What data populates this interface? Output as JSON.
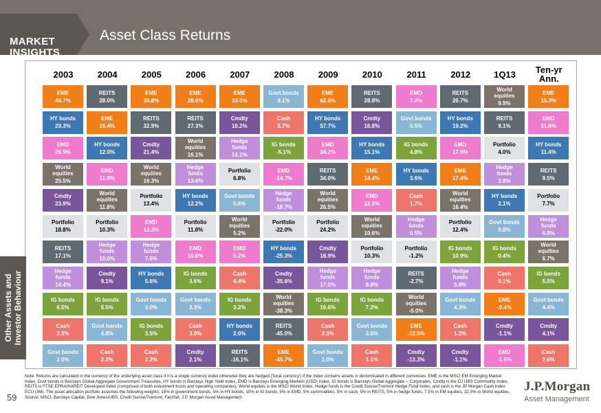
{
  "header": {
    "brand_line1": "MARKET",
    "brand_line2": "INSIGHTS",
    "title": "Asset Class Returns"
  },
  "sidebar": {
    "line1": "Other Assets and",
    "line2": "Investor Behaviour"
  },
  "page_number": "59",
  "logo": {
    "line1": "J.P.Morgan",
    "line2": "Asset Management"
  },
  "note": "Note: Returns are calculated in the currency of the underlying asset class if it is a single currency index otherwise they are hedged ('local currency') if the index contains assets in denominated in different currencies. EME is the MSCI EM Emerging Market Index, Govt bonds is Barclays Global Aggregate Government Treasuries, HY bonds is Barclays High Yield Index, EMD is Barclays Emerging Markets (USD) Index, IG bonds is Barclays Global Aggregate – Corporates, Cmdty is the DJ UBS Commodity Index, REITS is FTSE EPRA/NAREIT Developed Index (comprised of both investment trusts and operating companies), World equities is the MSCI World Index, Hedge funds is the Credit Suisse/Tremont Hedge Fund Index, and cash is the JP Morgan Cash Index ECU (3M). The asset allocation portfolio assumes the following weights; 15% in government bonds, 5% in HY bonds, 15% in IG bonds, 5% in EMD, 5% commodities, 5% in cash, 5% in REITS, 5% in hedge funds, 7.5% in EM equities, 32.5% in World equities. Source: MSCI, Barclays Capital, Dow Jones/UBS, Credit Suisse/Tremont, FactSet, J.P. Morgan Asset Management.",
  "colors": {
    "EME": "#f07f1a",
    "REITS": "#5f6a72",
    "Govt bonds": "#89b6d4",
    "HY bonds": "#3e78b2",
    "EMD": "#ee7bcc",
    "Cmdty": "#79559c",
    "Cash": "#ee756a",
    "IG bonds": "#7da33c",
    "World equities": "#7b726a",
    "Hedge funds": "#c08fdb",
    "Portfolio": "#e0e1e3"
  },
  "chart_data": {
    "type": "table",
    "title": "Asset Class Returns",
    "columns": [
      "2003",
      "2004",
      "2005",
      "2006",
      "2007",
      "2008",
      "2009",
      "2010",
      "2011",
      "2012",
      "1Q13",
      "Ten-yr Ann."
    ],
    "rows": [
      [
        [
          "EME",
          "46.7%"
        ],
        [
          "REITS",
          "28.0%"
        ],
        [
          "EME",
          "35.8%"
        ],
        [
          "EME",
          "28.9%"
        ],
        [
          "EME",
          "33.5%"
        ],
        [
          "Govt bonds",
          "9.1%"
        ],
        [
          "EME",
          "62.8%"
        ],
        [
          "REITS",
          "28.8%"
        ],
        [
          "EMD",
          "7.0%"
        ],
        [
          "REITS",
          "26.7%"
        ],
        [
          "World equities",
          "9.9%"
        ],
        [
          "EME",
          "15.3%"
        ]
      ],
      [
        [
          "HY bonds",
          "29.3%"
        ],
        [
          "EME",
          "16.4%"
        ],
        [
          "REITS",
          "32.9%"
        ],
        [
          "REITS",
          "27.3%"
        ],
        [
          "Cmdty",
          "16.2%"
        ],
        [
          "Cash",
          "5.7%"
        ],
        [
          "HY bonds",
          "57.7%"
        ],
        [
          "Cmdty",
          "16.8%"
        ],
        [
          "Govt bonds",
          "5.5%"
        ],
        [
          "HY bonds",
          "19.2%"
        ],
        [
          "REITS",
          "9.1%"
        ],
        [
          "EMD",
          "11.6%"
        ]
      ],
      [
        [
          "EMD",
          "26.9%"
        ],
        [
          "HY bonds",
          "12.0%"
        ],
        [
          "Cmdty",
          "21.4%"
        ],
        [
          "World equities",
          "16.1%"
        ],
        [
          "Hedge funds",
          "14.1%"
        ],
        [
          "IG bonds",
          "-5.1%"
        ],
        [
          "EMD",
          "34.2%"
        ],
        [
          "HY bonds",
          "15.1%"
        ],
        [
          "IG bonds",
          "4.8%"
        ],
        [
          "EMD",
          "17.9%"
        ],
        [
          "Portfolio",
          "4.0%"
        ],
        [
          "HY bonds",
          "11.4%"
        ]
      ],
      [
        [
          "World equities",
          "25.5%"
        ],
        [
          "EMD",
          "11.9%"
        ],
        [
          "World equities",
          "16.3%"
        ],
        [
          "Hedge funds",
          "13.6%"
        ],
        [
          "Portfolio",
          "6.8%"
        ],
        [
          "EMD",
          "-14.7%"
        ],
        [
          "REITS",
          "34.0%"
        ],
        [
          "EME",
          "14.4%"
        ],
        [
          "HY bonds",
          "3.6%"
        ],
        [
          "EME",
          "17.4%"
        ],
        [
          "Hedge funds",
          "3.8%"
        ],
        [
          "REITS",
          "9.5%"
        ]
      ],
      [
        [
          "Cmdty",
          "23.9%"
        ],
        [
          "World equities",
          "11.8%"
        ],
        [
          "Portfolio",
          "13.4%"
        ],
        [
          "HY bonds",
          "12.2%"
        ],
        [
          "Govt bonds",
          "5.6%"
        ],
        [
          "Hedge funds",
          "-18.7%"
        ],
        [
          "World equities",
          "26.5%"
        ],
        [
          "EMD",
          "12.8%"
        ],
        [
          "Cash",
          "1.7%"
        ],
        [
          "World equities",
          "16.4%"
        ],
        [
          "HY bonds",
          "2.1%"
        ],
        [
          "Portfolio",
          "7.7%"
        ]
      ],
      [
        [
          "Portfolio",
          "18.8%"
        ],
        [
          "Portfolio",
          "10.3%"
        ],
        [
          "EMD",
          "12.3%"
        ],
        [
          "Portfolio",
          "11.8%"
        ],
        [
          "World equities",
          "5.2%"
        ],
        [
          "Portfolio",
          "-22.0%"
        ],
        [
          "Portfolio",
          "24.2%"
        ],
        [
          "World equities",
          "10.6%"
        ],
        [
          "Hedge funds",
          "0.5%"
        ],
        [
          "Portfolio",
          "12.4%"
        ],
        [
          "Govt bonds",
          "0.8%"
        ],
        [
          "Hedge funds",
          "6.9%"
        ]
      ],
      [
        [
          "REITS",
          "17.1%"
        ],
        [
          "Hedge funds",
          "10.0%"
        ],
        [
          "Hedge funds",
          "7.6%"
        ],
        [
          "EMD",
          "10.0%"
        ],
        [
          "EMD",
          "5.2%"
        ],
        [
          "HY bonds",
          "-25.3%"
        ],
        [
          "Cmdty",
          "18.9%"
        ],
        [
          "Portfolio",
          "10.3%"
        ],
        [
          "Portfolio",
          "-1.2%"
        ],
        [
          "IG bonds",
          "10.9%"
        ],
        [
          "IG bonds",
          "0.4%"
        ],
        [
          "World equities",
          "6.7%"
        ]
      ],
      [
        [
          "Hedge funds",
          "14.4%"
        ],
        [
          "Cmdty",
          "9.1%"
        ],
        [
          "HY bonds",
          "5.6%"
        ],
        [
          "IG bonds",
          "3.6%"
        ],
        [
          "Cash",
          "4.4%"
        ],
        [
          "Cmdty",
          "-35.6%"
        ],
        [
          "Hedge funds",
          "17.5%"
        ],
        [
          "Hedge funds",
          "8.8%"
        ],
        [
          "REITS",
          "-2.7%"
        ],
        [
          "Hedge funds",
          "5.9%"
        ],
        [
          "Cash",
          "0.1%"
        ],
        [
          "IG bonds",
          "5.5%"
        ]
      ],
      [
        [
          "IG bonds",
          "6.5%"
        ],
        [
          "IG bonds",
          "5.5%"
        ],
        [
          "Govt bonds",
          "3.0%"
        ],
        [
          "Govt bonds",
          "3.3%"
        ],
        [
          "IG bonds",
          "3.2%"
        ],
        [
          "World equities",
          "-38.3%"
        ],
        [
          "IG bonds",
          "16.6%"
        ],
        [
          "IG bonds",
          "7.2%"
        ],
        [
          "World equities",
          "-5.0%"
        ],
        [
          "Govt bonds",
          "4.3%"
        ],
        [
          "EME",
          "-0.4%"
        ],
        [
          "Govt bonds",
          "4.4%"
        ]
      ],
      [
        [
          "Cash",
          "2.5%"
        ],
        [
          "Govt bonds",
          "4.8%"
        ],
        [
          "IG bonds",
          "3.5%"
        ],
        [
          "Cash",
          "3.0%"
        ],
        [
          "HY bonds",
          "2.0%"
        ],
        [
          "REITS",
          "-45.0%"
        ],
        [
          "Cash",
          "2.3%"
        ],
        [
          "Govt bonds",
          "3.6%"
        ],
        [
          "EME",
          "-12.5%"
        ],
        [
          "Cash",
          "1.2%"
        ],
        [
          "Cmdty",
          "-1.1%"
        ],
        [
          "Cmdty",
          "4.1%"
        ]
      ],
      [
        [
          "Govt bonds",
          "2.0%"
        ],
        [
          "Cash",
          "2.2%"
        ],
        [
          "Cash",
          "2.2%"
        ],
        [
          "Cmdty",
          "2.1%"
        ],
        [
          "REITS",
          "-16.1%"
        ],
        [
          "EME",
          "-45.7%"
        ],
        [
          "Govt bonds",
          "1.0%"
        ],
        [
          "Cash",
          "1.1%"
        ],
        [
          "Cmdty",
          "-13.3%"
        ],
        [
          "Cmdty",
          "-1.1%"
        ],
        [
          "EMD",
          "-1.5%"
        ],
        [
          "Cash",
          "2.6%"
        ]
      ]
    ]
  }
}
